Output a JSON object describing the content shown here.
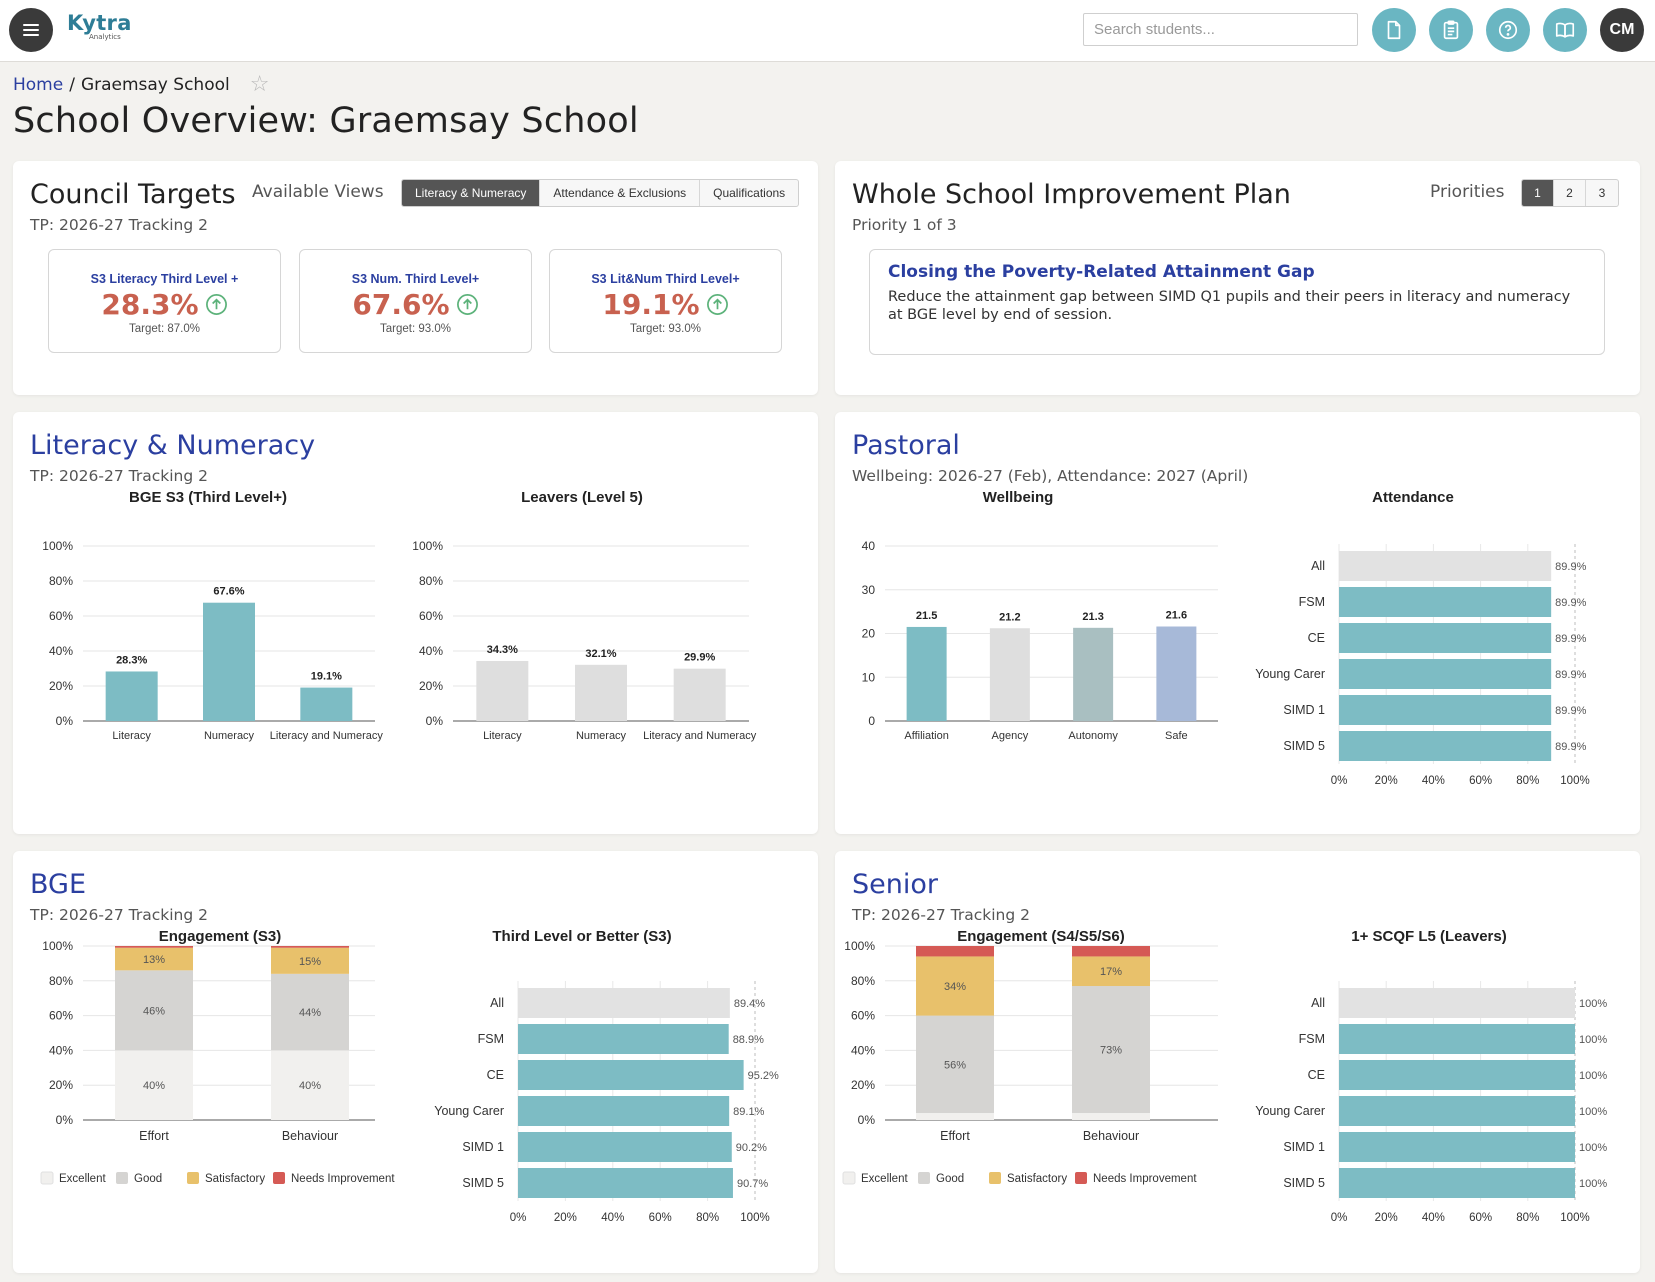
{
  "app": {
    "logo_main": "Kytra",
    "logo_sub": "Analytics",
    "search_placeholder": "Search students...",
    "toolbar_icons": [
      "file-icon",
      "clipboard-icon",
      "help-icon",
      "book-icon"
    ],
    "user_initials": "CM"
  },
  "breadcrumb": {
    "home": "Home",
    "sep": "/",
    "current": "Graemsay School"
  },
  "page_title": "School Overview: Graemsay School",
  "council": {
    "title": "Council Targets",
    "subtitle": "TP: 2026-27 Tracking 2",
    "views_label": "Available Views",
    "views": [
      "Literacy & Numeracy",
      "Attendance & Exclusions",
      "Qualifications"
    ],
    "active_view": 0,
    "kpis": [
      {
        "label": "S3 Literacy Third Level +",
        "value": "28.3%",
        "target": "Target: 87.0%"
      },
      {
        "label": "S3 Num. Third Level+",
        "value": "67.6%",
        "target": "Target: 93.0%"
      },
      {
        "label": "S3 Lit&Num Third Level+",
        "value": "19.1%",
        "target": "Target: 93.0%"
      }
    ]
  },
  "plan": {
    "title": "Whole School Improvement Plan",
    "subtitle": "Priority 1 of 3",
    "priorities_label": "Priorities",
    "priorities": [
      "1",
      "2",
      "3"
    ],
    "active_priority": 0,
    "priority_title": "Closing the Poverty-Related Attainment Gap",
    "priority_desc": "Reduce the attainment gap between SIMD Q1 pupils and their peers in literacy and numeracy at BGE level by end of session."
  },
  "lit_num": {
    "title": "Literacy & Numeracy",
    "subtitle": "TP: 2026-27 Tracking 2"
  },
  "pastoral": {
    "title": "Pastoral",
    "subtitle": "Wellbeing: 2026-27 (Feb), Attendance: 2027 (April)"
  },
  "bge": {
    "title": "BGE",
    "subtitle": "TP: 2026-27 Tracking 2"
  },
  "senior": {
    "title": "Senior",
    "subtitle": "TP: 2026-27 Tracking 2"
  },
  "chart_data": [
    {
      "id": "bge-s3",
      "type": "bar",
      "title": "BGE S3 (Third Level+)",
      "categories": [
        "Literacy",
        "Numeracy",
        "Literacy and Numeracy"
      ],
      "values": [
        28.3,
        67.6,
        19.1
      ],
      "labels": [
        "28.3%",
        "67.6%",
        "19.1%"
      ],
      "ylim": [
        0,
        100
      ],
      "yticks": [
        "0%",
        "20%",
        "40%",
        "60%",
        "80%",
        "100%"
      ],
      "color": "#7dbcc4",
      "grid": true
    },
    {
      "id": "leavers-l5",
      "type": "bar",
      "title": "Leavers (Level 5)",
      "categories": [
        "Literacy",
        "Numeracy",
        "Literacy and Numeracy"
      ],
      "values": [
        34.3,
        32.1,
        29.9
      ],
      "labels": [
        "34.3%",
        "32.1%",
        "29.9%"
      ],
      "ylim": [
        0,
        100
      ],
      "yticks": [
        "0%",
        "20%",
        "40%",
        "60%",
        "80%",
        "100%"
      ],
      "color": "#dedede",
      "grid": true
    },
    {
      "id": "wellbeing",
      "type": "bar",
      "title": "Wellbeing",
      "categories": [
        "Affiliation",
        "Agency",
        "Autonomy",
        "Safe"
      ],
      "values": [
        21.5,
        21.2,
        21.3,
        21.6
      ],
      "labels": [
        "21.5",
        "21.2",
        "21.3",
        "21.6"
      ],
      "ylim": [
        0,
        40
      ],
      "yticks": [
        "0",
        "10",
        "20",
        "30",
        "40"
      ],
      "colors": [
        "#7dbcc4",
        "#dedede",
        "#a9bfc1",
        "#a7b9d8"
      ],
      "grid": true
    },
    {
      "id": "attendance",
      "type": "bar",
      "orientation": "horizontal",
      "title": "Attendance",
      "categories": [
        "All",
        "FSM",
        "CE",
        "Young Carer",
        "SIMD 1",
        "SIMD 5"
      ],
      "values": [
        89.9,
        89.9,
        89.9,
        89.9,
        89.9,
        89.9
      ],
      "labels": [
        "89.9%",
        "89.9%",
        "89.9%",
        "89.9%",
        "89.9%",
        "89.9%"
      ],
      "xlim": [
        0,
        100
      ],
      "xticks": [
        "0%",
        "20%",
        "40%",
        "60%",
        "80%",
        "100%"
      ],
      "first_color": "#e2e2e2",
      "color": "#7dbcc4",
      "grid": true
    },
    {
      "id": "engagement-s3",
      "type": "bar",
      "stacked": true,
      "title": "Engagement (S3)",
      "categories": [
        "Effort",
        "Behaviour"
      ],
      "series": [
        {
          "name": "Excellent",
          "values": [
            40,
            40
          ],
          "labels": [
            "40%",
            "40%"
          ]
        },
        {
          "name": "Good",
          "values": [
            46,
            44
          ],
          "labels": [
            "46%",
            "44%"
          ]
        },
        {
          "name": "Satisfactory",
          "values": [
            13,
            15
          ],
          "labels": [
            "13%",
            "15%"
          ]
        },
        {
          "name": "Needs Improvement",
          "values": [
            1,
            1
          ],
          "labels": [
            "",
            ""
          ]
        }
      ],
      "colors": [
        "#f1f0ee",
        "#d5d4d2",
        "#e8c16b",
        "#d55a55"
      ],
      "ylim": [
        0,
        100
      ],
      "yticks": [
        "0%",
        "20%",
        "40%",
        "60%",
        "80%",
        "100%"
      ],
      "legend": "bottom",
      "grid": true
    },
    {
      "id": "third-level-s3",
      "type": "bar",
      "orientation": "horizontal",
      "title": "Third Level or Better (S3)",
      "categories": [
        "All",
        "FSM",
        "CE",
        "Young Carer",
        "SIMD 1",
        "SIMD 5"
      ],
      "values": [
        89.4,
        88.9,
        95.2,
        89.1,
        90.2,
        90.7
      ],
      "labels": [
        "89.4%",
        "88.9%",
        "95.2%",
        "89.1%",
        "90.2%",
        "90.7%"
      ],
      "xlim": [
        0,
        100
      ],
      "xticks": [
        "0%",
        "20%",
        "40%",
        "60%",
        "80%",
        "100%"
      ],
      "first_color": "#e2e2e2",
      "color": "#7dbcc4",
      "grid": true
    },
    {
      "id": "engagement-senior",
      "type": "bar",
      "stacked": true,
      "title": "Engagement (S4/S5/S6)",
      "categories": [
        "Effort",
        "Behaviour"
      ],
      "series": [
        {
          "name": "Excellent",
          "values": [
            4,
            4
          ],
          "labels": [
            "",
            ""
          ]
        },
        {
          "name": "Good",
          "values": [
            56,
            73
          ],
          "labels": [
            "56%",
            "73%"
          ]
        },
        {
          "name": "Satisfactory",
          "values": [
            34,
            17
          ],
          "labels": [
            "34%",
            "17%"
          ]
        },
        {
          "name": "Needs Improvement",
          "values": [
            6,
            6
          ],
          "labels": [
            "",
            ""
          ]
        }
      ],
      "colors": [
        "#f1f0ee",
        "#d5d4d2",
        "#e8c16b",
        "#d55a55"
      ],
      "ylim": [
        0,
        100
      ],
      "yticks": [
        "0%",
        "20%",
        "40%",
        "60%",
        "80%",
        "100%"
      ],
      "legend": "bottom",
      "grid": true
    },
    {
      "id": "scqf-l5",
      "type": "bar",
      "orientation": "horizontal",
      "title": "1+ SCQF L5 (Leavers)",
      "categories": [
        "All",
        "FSM",
        "CE",
        "Young Carer",
        "SIMD 1",
        "SIMD 5"
      ],
      "values": [
        100,
        100,
        100,
        100,
        100,
        100
      ],
      "labels": [
        "100%",
        "100%",
        "100%",
        "100%",
        "100%",
        "100%"
      ],
      "xlim": [
        0,
        100
      ],
      "xticks": [
        "0%",
        "20%",
        "40%",
        "60%",
        "80%",
        "100%"
      ],
      "first_color": "#e2e2e2",
      "color": "#7dbcc4",
      "grid": true
    }
  ]
}
